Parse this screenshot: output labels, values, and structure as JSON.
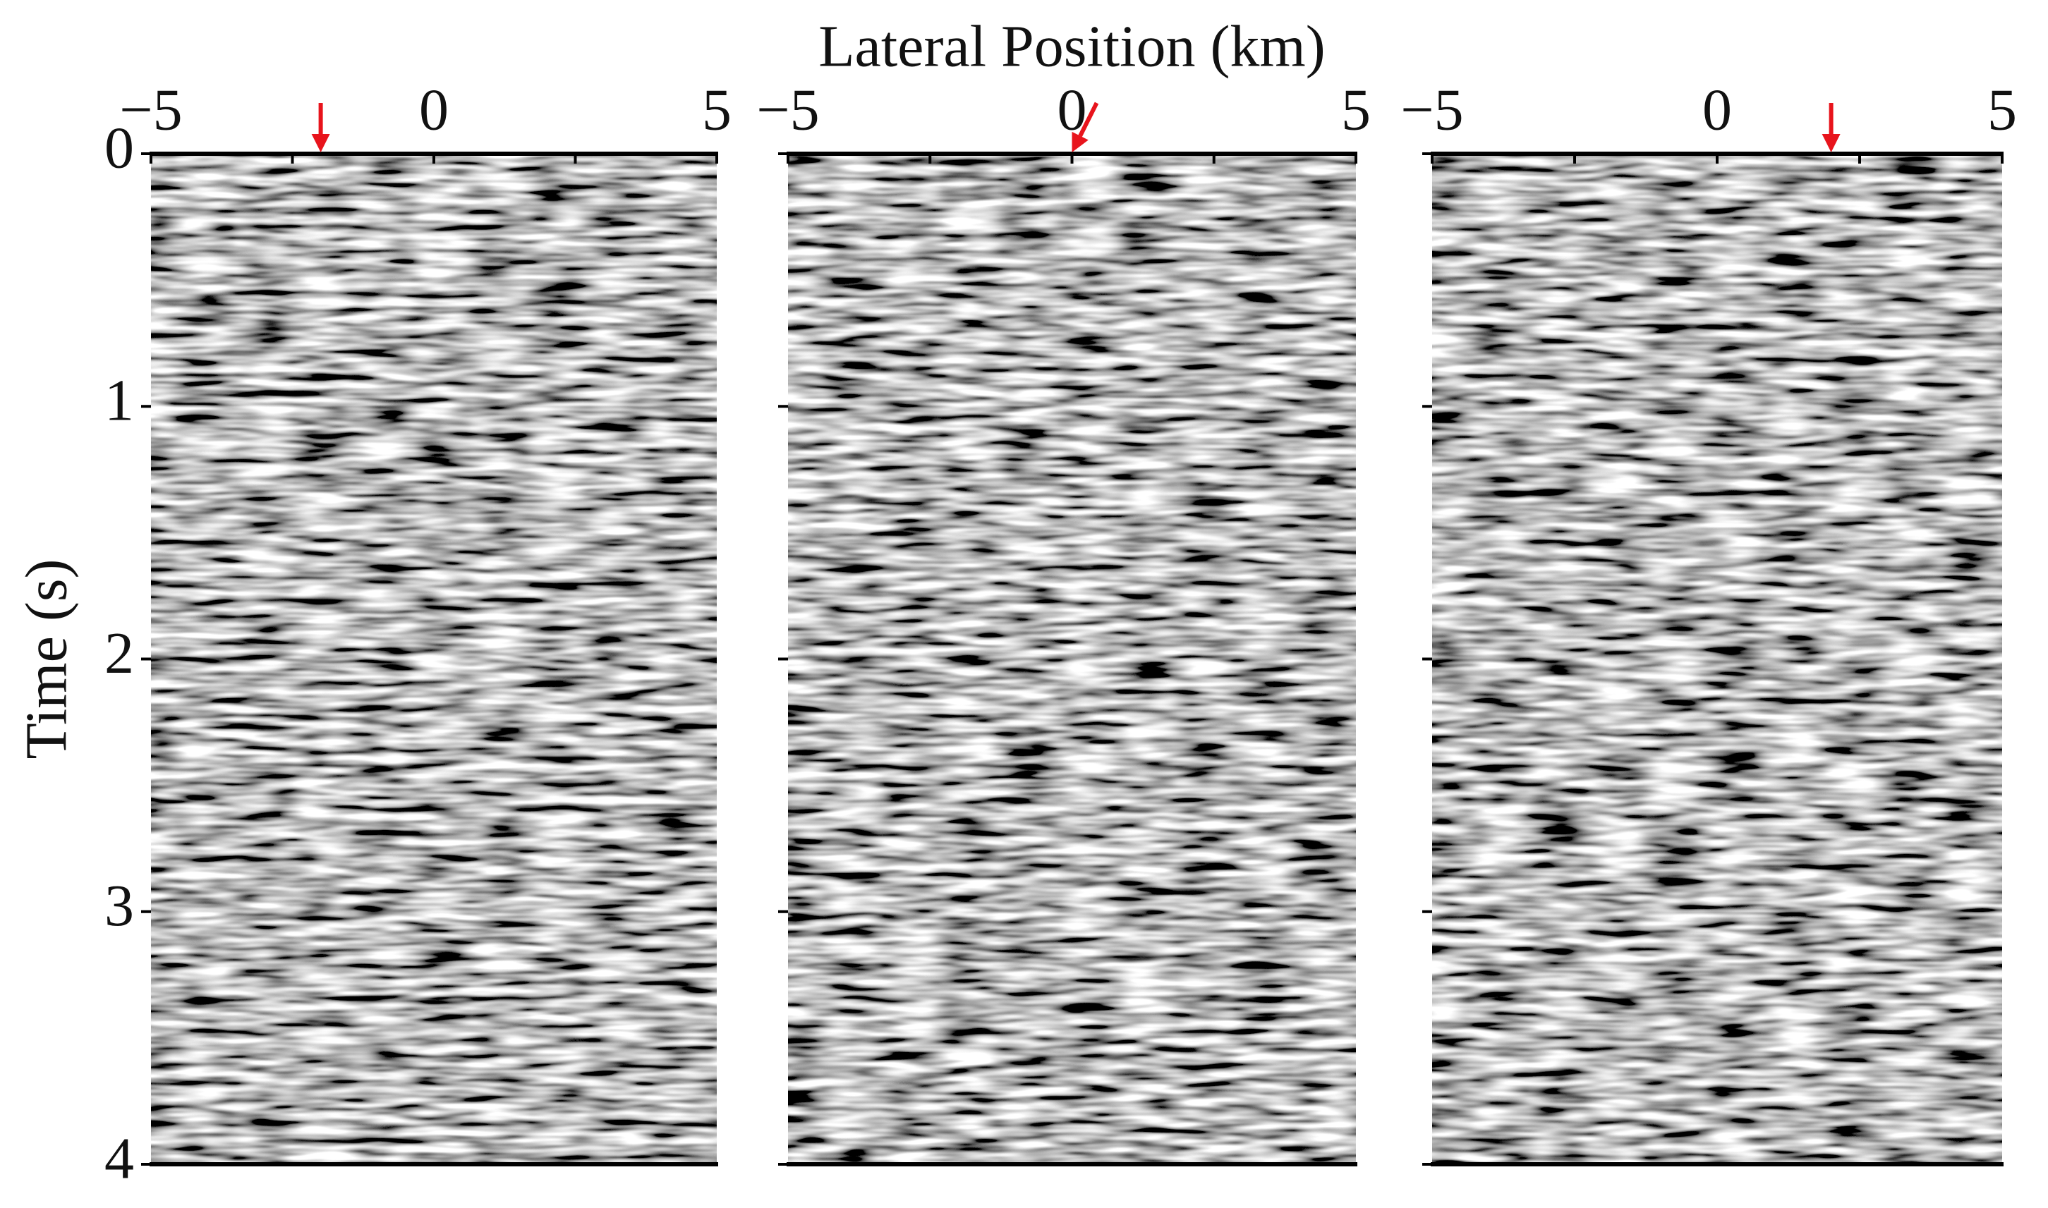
{
  "chart_data": [
    {
      "type": "seismic",
      "ylabel": "Time (s)",
      "xlim": [
        -5,
        5
      ],
      "xticks": [
        {
          "value": -5,
          "label": "−5"
        },
        0,
        5
      ],
      "xminorticks": [
        -2.5,
        2.5
      ],
      "ylim": [
        0,
        4
      ],
      "y_inverted": true,
      "yticks": [
        0,
        1,
        2,
        3,
        4
      ],
      "yticks_labeled": true,
      "arrow_x": -2,
      "arrow_color": "#e8141c"
    },
    {
      "type": "seismic",
      "xlabel": "Lateral Position (km)",
      "xlim": [
        -5,
        5
      ],
      "xticks": [
        {
          "value": -5,
          "label": "−5"
        },
        0,
        5
      ],
      "xminorticks": [
        -2.5,
        2.5
      ],
      "ylim": [
        0,
        4
      ],
      "y_inverted": true,
      "yticks": [
        0,
        1,
        2,
        3,
        4
      ],
      "yticks_labeled": false,
      "arrow_x": 0,
      "arrow_color": "#e8141c"
    },
    {
      "type": "seismic",
      "xlim": [
        -5,
        5
      ],
      "xticks": [
        {
          "value": -5,
          "label": "−5"
        },
        0,
        5
      ],
      "xminorticks": [
        -2.5,
        2.5
      ],
      "ylim": [
        0,
        4
      ],
      "y_inverted": true,
      "yticks": [
        0,
        1,
        2,
        3,
        4
      ],
      "yticks_labeled": false,
      "arrow_x": 2,
      "arrow_color": "#e8141c"
    }
  ]
}
